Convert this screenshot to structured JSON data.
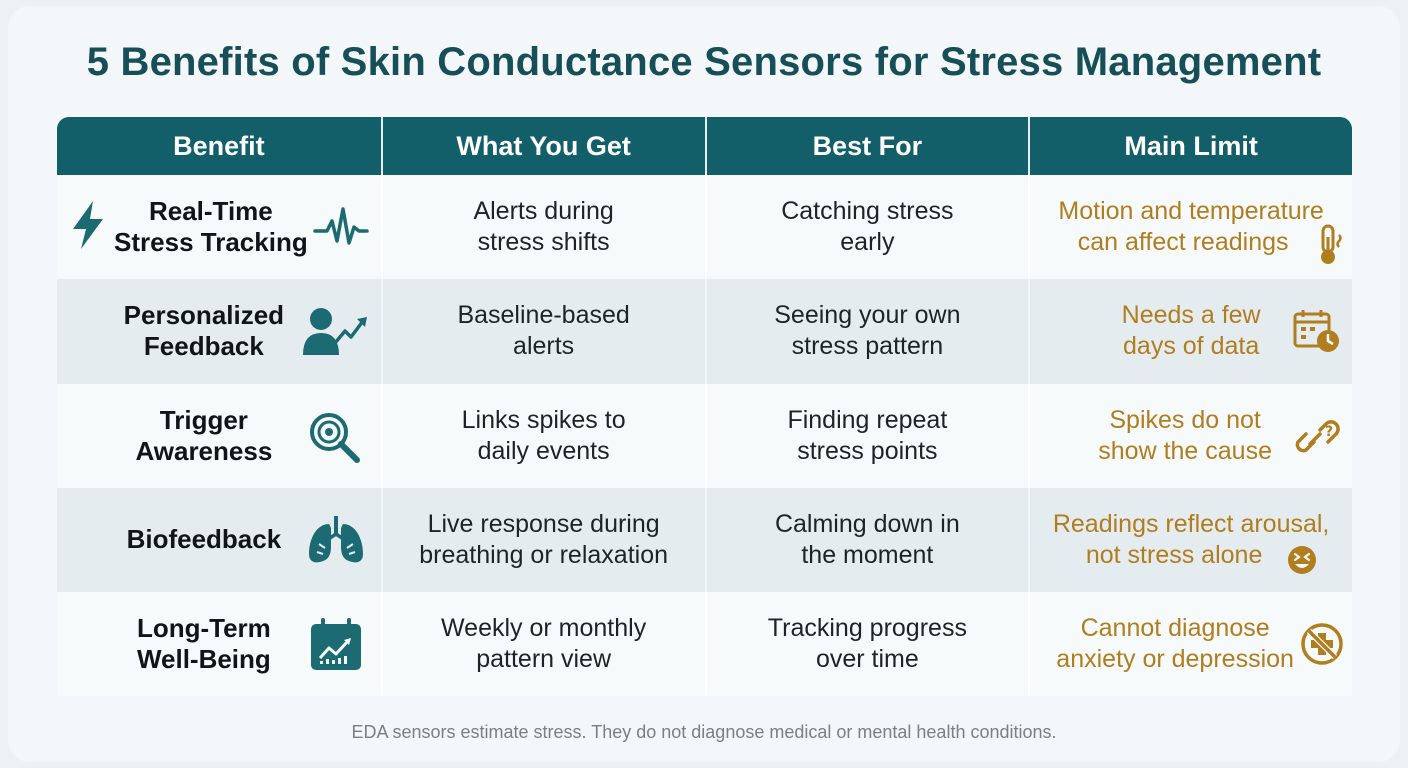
{
  "title": "5 Benefits of Skin Conductance Sensors for Stress Management",
  "headers": [
    "Benefit",
    "What You Get",
    "Best For",
    "Main Limit"
  ],
  "rows": [
    {
      "benefit": [
        "Real-Time",
        "Stress Tracking"
      ],
      "get": [
        "Alerts during",
        "stress shifts"
      ],
      "best": [
        "Catching stress",
        "early"
      ],
      "limit": [
        "Motion and temperature",
        "can affect readings"
      ],
      "benefit_icons": [
        "lightning-icon",
        "heartbeat-icon"
      ],
      "limit_icon": "thermometer-icon"
    },
    {
      "benefit": [
        "Personalized",
        "Feedback"
      ],
      "get": [
        "Baseline-based",
        "alerts"
      ],
      "best": [
        "Seeing your own",
        "stress pattern"
      ],
      "limit": [
        "Needs a few",
        "days of data"
      ],
      "benefit_icons": [
        "user-trend-icon"
      ],
      "limit_icon": "calendar-clock-icon"
    },
    {
      "benefit": [
        "Trigger",
        "Awareness"
      ],
      "get": [
        "Links spikes to",
        "daily events"
      ],
      "best": [
        "Finding repeat",
        "stress points"
      ],
      "limit": [
        "Spikes do not",
        "show the cause"
      ],
      "benefit_icons": [
        "magnifier-target-icon"
      ],
      "limit_icon": "link-question-icon"
    },
    {
      "benefit": [
        "Biofeedback"
      ],
      "get": [
        "Live response during",
        "breathing or relaxation"
      ],
      "best": [
        "Calming down in",
        "the moment"
      ],
      "limit": [
        "Readings reflect arousal,",
        "not stress alone"
      ],
      "benefit_icons": [
        "lungs-icon"
      ],
      "limit_icon": "excited-face-icon"
    },
    {
      "benefit": [
        "Long-Term",
        "Well-Being"
      ],
      "get": [
        "Weekly or monthly",
        "pattern view"
      ],
      "best": [
        "Tracking progress",
        "over time"
      ],
      "limit": [
        "Cannot diagnose",
        "anxiety or depression"
      ],
      "benefit_icons": [
        "calendar-chart-icon"
      ],
      "limit_icon": "no-medical-icon"
    }
  ],
  "footnote": "EDA sensors estimate stress. They do not diagnose medical or mental health conditions.",
  "colors": {
    "title": "#164f58",
    "header_bg": "#135f69",
    "limit_text": "#b07d1f",
    "icon_teal": "#1c6a72"
  }
}
